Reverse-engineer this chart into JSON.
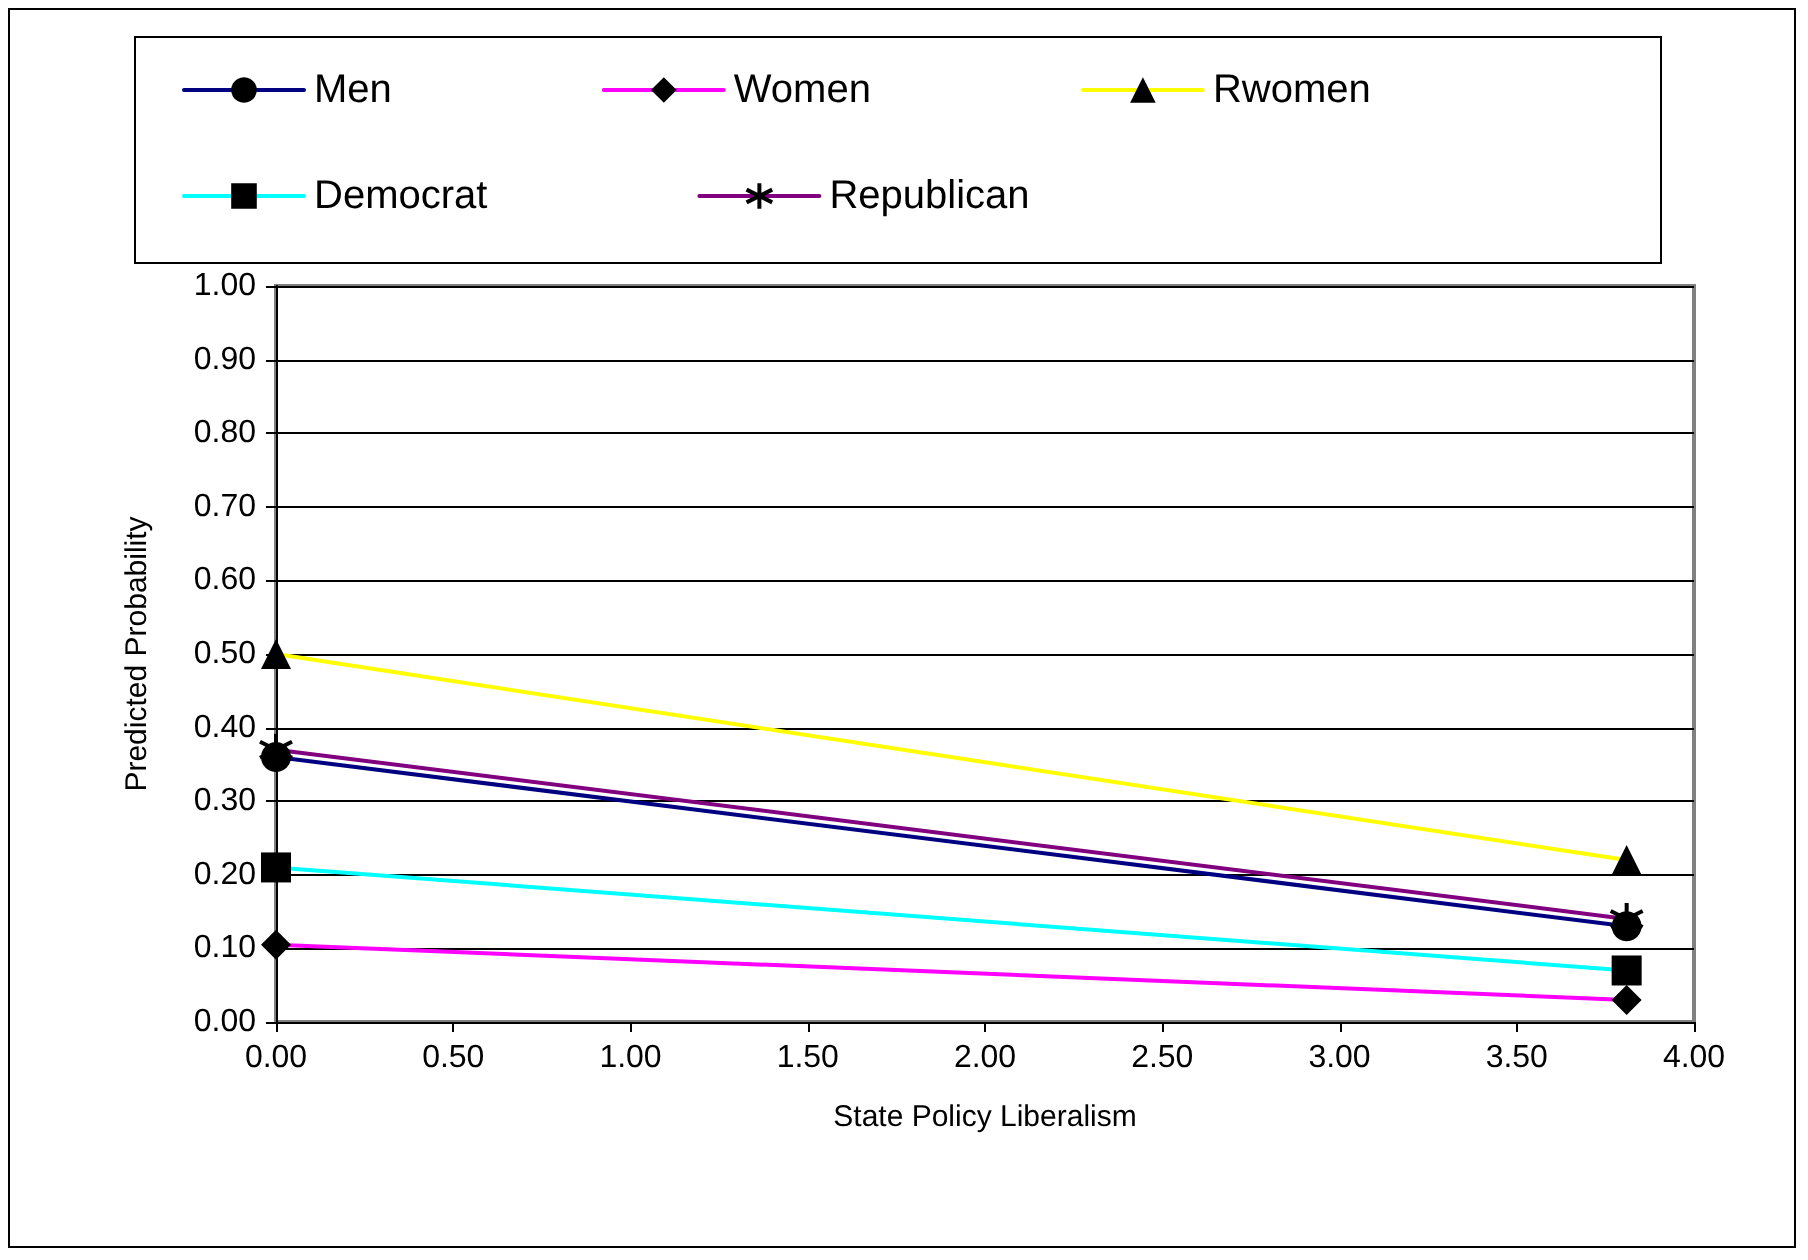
{
  "chart_data": {
    "type": "line",
    "xlabel": "State Policy Liberalism",
    "ylabel": "Predicted Probability",
    "x": [
      0,
      3.81
    ],
    "series": [
      {
        "name": "Men",
        "color": "#000080",
        "values": [
          0.36,
          0.13
        ],
        "marker": "circle"
      },
      {
        "name": "Women",
        "color": "#ff00ff",
        "values": [
          0.105,
          0.03
        ],
        "marker": "diamond"
      },
      {
        "name": "Rwomen",
        "color": "#ffff00",
        "values": [
          0.5,
          0.22
        ],
        "marker": "triangle"
      },
      {
        "name": "Democrat",
        "color": "#00ffff",
        "values": [
          0.21,
          0.07
        ],
        "marker": "square"
      },
      {
        "name": "Republican",
        "color": "#800080",
        "values": [
          0.37,
          0.14
        ],
        "marker": "cross"
      }
    ],
    "xlim": [
      0,
      4
    ],
    "xticks": [
      {
        "value": 0,
        "label": "0.00"
      },
      {
        "value": 0.5,
        "label": "0.50"
      },
      {
        "value": 1,
        "label": "1.00"
      },
      {
        "value": 1.5,
        "label": "1.50"
      },
      {
        "value": 2,
        "label": "2.00"
      },
      {
        "value": 2.5,
        "label": "2.50"
      },
      {
        "value": 3,
        "label": "3.00"
      },
      {
        "value": 3.5,
        "label": "3.50"
      },
      {
        "value": 4,
        "label": "4.00"
      }
    ],
    "ylim": [
      0,
      1
    ],
    "yticks": [
      {
        "value": 0,
        "label": "0.00"
      },
      {
        "value": 0.1,
        "label": "0.10"
      },
      {
        "value": 0.2,
        "label": "0.20"
      },
      {
        "value": 0.3,
        "label": "0.30"
      },
      {
        "value": 0.4,
        "label": "0.40"
      },
      {
        "value": 0.5,
        "label": "0.50"
      },
      {
        "value": 0.6,
        "label": "0.60"
      },
      {
        "value": 0.7,
        "label": "0.70"
      },
      {
        "value": 0.8,
        "label": "0.80"
      },
      {
        "value": 0.9,
        "label": "0.90"
      },
      {
        "value": 1,
        "label": "1.00"
      }
    ],
    "grid": "y",
    "legend": "top",
    "line_style": "solid"
  }
}
